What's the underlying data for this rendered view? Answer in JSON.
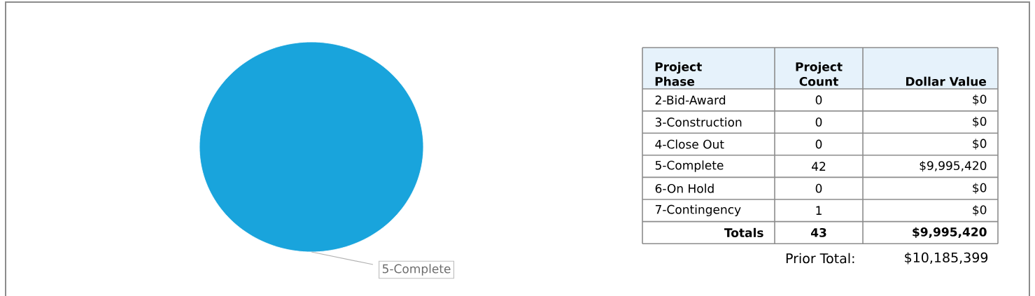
{
  "chart_data": [
    {
      "type": "pie",
      "categories": [
        null,
        null,
        null,
        "5-Complete",
        null,
        null
      ],
      "values": [
        0,
        0,
        0,
        100,
        0,
        0
      ],
      "colors": [
        null,
        null,
        null,
        "#19a4dc",
        null,
        null
      ]
    },
    {
      "type": "other",
      "annotations": [
        "Project Phase",
        "Project Count",
        "Dollar Value",
        "2-Bid-Award",
        "0",
        "$0",
        "3-Construction",
        "0",
        "$0",
        "4-Close Out",
        "0",
        "$0",
        "5-Complete",
        "42",
        "$9,995,420",
        "6-On Hold",
        "0",
        "$0",
        "7-Contingency",
        "1",
        "$0",
        "Totals",
        "43",
        "$9,995,420",
        "Prior Total:",
        "$10,185,399"
      ]
    }
  ]
}
